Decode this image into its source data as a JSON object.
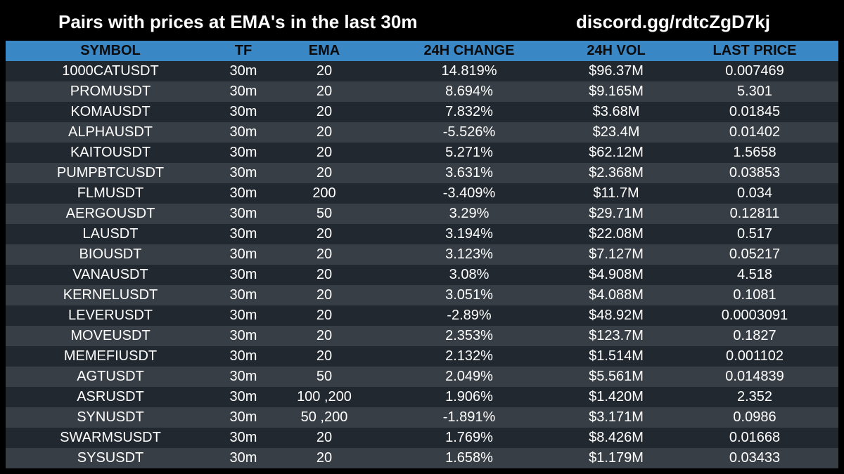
{
  "header": {
    "title": "Pairs with prices at EMA's in the last 30m",
    "discord": "discord.gg/rdtcZgD7kj"
  },
  "table": {
    "columns": [
      "SYMBOL",
      "TF",
      "EMA",
      "24H CHANGE",
      "24H VOL",
      "LAST PRICE"
    ],
    "rows": [
      {
        "symbol": "1000CATUSDT",
        "tf": "30m",
        "ema": "20",
        "change": "14.819%",
        "vol": "$96.37M",
        "price": "0.007469"
      },
      {
        "symbol": "PROMUSDT",
        "tf": "30m",
        "ema": "20",
        "change": "8.694%",
        "vol": "$9.165M",
        "price": "5.301"
      },
      {
        "symbol": "KOMAUSDT",
        "tf": "30m",
        "ema": "20",
        "change": "7.832%",
        "vol": "$3.68M",
        "price": "0.01845"
      },
      {
        "symbol": "ALPHAUSDT",
        "tf": "30m",
        "ema": "20",
        "change": "-5.526%",
        "vol": "$23.4M",
        "price": "0.01402"
      },
      {
        "symbol": "KAITOUSDT",
        "tf": "30m",
        "ema": "20",
        "change": "5.271%",
        "vol": "$62.12M",
        "price": "1.5658"
      },
      {
        "symbol": "PUMPBTCUSDT",
        "tf": "30m",
        "ema": "20",
        "change": "3.631%",
        "vol": "$2.368M",
        "price": "0.03853"
      },
      {
        "symbol": "FLMUSDT",
        "tf": "30m",
        "ema": "200",
        "change": "-3.409%",
        "vol": "$11.7M",
        "price": "0.034"
      },
      {
        "symbol": "AERGOUSDT",
        "tf": "30m",
        "ema": "50",
        "change": "3.29%",
        "vol": "$29.71M",
        "price": "0.12811"
      },
      {
        "symbol": "LAUSDT",
        "tf": "30m",
        "ema": "20",
        "change": "3.194%",
        "vol": "$22.08M",
        "price": "0.517"
      },
      {
        "symbol": "BIOUSDT",
        "tf": "30m",
        "ema": "20",
        "change": "3.123%",
        "vol": "$7.127M",
        "price": "0.05217"
      },
      {
        "symbol": "VANAUSDT",
        "tf": "30m",
        "ema": "20",
        "change": "3.08%",
        "vol": "$4.908M",
        "price": "4.518"
      },
      {
        "symbol": "KERNELUSDT",
        "tf": "30m",
        "ema": "20",
        "change": "3.051%",
        "vol": "$4.088M",
        "price": "0.1081"
      },
      {
        "symbol": "LEVERUSDT",
        "tf": "30m",
        "ema": "20",
        "change": "-2.89%",
        "vol": "$48.92M",
        "price": "0.0003091"
      },
      {
        "symbol": "MOVEUSDT",
        "tf": "30m",
        "ema": "20",
        "change": "2.353%",
        "vol": "$123.7M",
        "price": "0.1827"
      },
      {
        "symbol": "MEMEFIUSDT",
        "tf": "30m",
        "ema": "20",
        "change": "2.132%",
        "vol": "$1.514M",
        "price": "0.001102"
      },
      {
        "symbol": "AGTUSDT",
        "tf": "30m",
        "ema": "50",
        "change": "2.049%",
        "vol": "$5.561M",
        "price": "0.014839"
      },
      {
        "symbol": "ASRUSDT",
        "tf": "30m",
        "ema": "100 ,200",
        "change": "1.906%",
        "vol": "$1.420M",
        "price": "2.352"
      },
      {
        "symbol": "SYNUSDT",
        "tf": "30m",
        "ema": "50 ,200",
        "change": "-1.891%",
        "vol": "$3.171M",
        "price": "0.0986"
      },
      {
        "symbol": "SWARMSUSDT",
        "tf": "30m",
        "ema": "20",
        "change": "1.769%",
        "vol": "$8.426M",
        "price": "0.01668"
      },
      {
        "symbol": "SYSUSDT",
        "tf": "30m",
        "ema": "20",
        "change": "1.658%",
        "vol": "$1.179M",
        "price": "0.03433"
      }
    ]
  },
  "colors": {
    "header_bg": "#3a87c6",
    "row_dark": "#212830",
    "row_light": "#373e45",
    "page_bg": "#000000"
  }
}
